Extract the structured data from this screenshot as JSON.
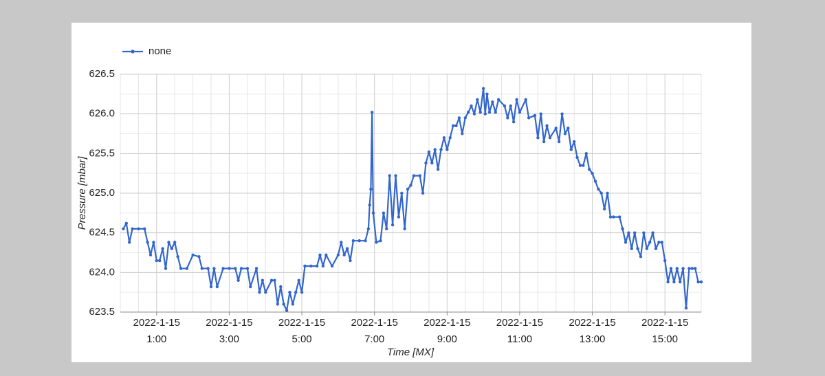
{
  "chart_data": {
    "type": "line",
    "xlabel": "Time [MX]",
    "ylabel": "Pressure [mbar]",
    "legend": "top-left",
    "grid": true,
    "minor_grid": true,
    "xlim": [
      "2022-1-15 0:00",
      "2022-1-15 16:00"
    ],
    "xticks": [
      {
        "value": "2022-1-15 1:00",
        "label": [
          "2022-1-15",
          "1:00"
        ]
      },
      {
        "value": "2022-1-15 3:00",
        "label": [
          "2022-1-15",
          "3:00"
        ]
      },
      {
        "value": "2022-1-15 5:00",
        "label": [
          "2022-1-15",
          "5:00"
        ]
      },
      {
        "value": "2022-1-15 7:00",
        "label": [
          "2022-1-15",
          "7:00"
        ]
      },
      {
        "value": "2022-1-15 9:00",
        "label": [
          "2022-1-15",
          "9:00"
        ]
      },
      {
        "value": "2022-1-15 11:00",
        "label": [
          "2022-1-15",
          "11:00"
        ]
      },
      {
        "value": "2022-1-15 13:00",
        "label": [
          "2022-1-15",
          "13:00"
        ]
      },
      {
        "value": "2022-1-15 15:00",
        "label": [
          "2022-1-15",
          "15:00"
        ]
      }
    ],
    "ylim": [
      623.5,
      626.5
    ],
    "yticks": [
      623.5,
      {
        "value": 624,
        "label": "624.0"
      },
      624.5,
      {
        "value": 625,
        "label": "625.0"
      },
      625.5,
      {
        "value": 626,
        "label": "626.0"
      },
      626.5
    ],
    "x": [
      "2022-1-15 0:05",
      "2022-1-15 0:10",
      "2022-1-15 0:15",
      "2022-1-15 0:20",
      "2022-1-15 0:30",
      "2022-1-15 0:40",
      "2022-1-15 0:45",
      "2022-1-15 0:50",
      "2022-1-15 0:55",
      "2022-1-15 1:00",
      "2022-1-15 1:05",
      "2022-1-15 1:10",
      "2022-1-15 1:15",
      "2022-1-15 1:20",
      "2022-1-15 1:25",
      "2022-1-15 1:30",
      "2022-1-15 1:35",
      "2022-1-15 1:40",
      "2022-1-15 1:50",
      "2022-1-15 2:00",
      "2022-1-15 2:10",
      "2022-1-15 2:15",
      "2022-1-15 2:25",
      "2022-1-15 2:30",
      "2022-1-15 2:35",
      "2022-1-15 2:40",
      "2022-1-15 2:50",
      "2022-1-15 3:00",
      "2022-1-15 3:10",
      "2022-1-15 3:15",
      "2022-1-15 3:20",
      "2022-1-15 3:30",
      "2022-1-15 3:35",
      "2022-1-15 3:45",
      "2022-1-15 3:50",
      "2022-1-15 3:55",
      "2022-1-15 4:00",
      "2022-1-15 4:10",
      "2022-1-15 4:15",
      "2022-1-15 4:20",
      "2022-1-15 4:25",
      "2022-1-15 4:30",
      "2022-1-15 4:35",
      "2022-1-15 4:40",
      "2022-1-15 4:45",
      "2022-1-15 4:50",
      "2022-1-15 4:55",
      "2022-1-15 5:00",
      "2022-1-15 5:05",
      "2022-1-15 5:15",
      "2022-1-15 5:25",
      "2022-1-15 5:30",
      "2022-1-15 5:35",
      "2022-1-15 5:40",
      "2022-1-15 5:50",
      "2022-1-15 6:00",
      "2022-1-15 6:05",
      "2022-1-15 6:10",
      "2022-1-15 6:15",
      "2022-1-15 6:20",
      "2022-1-15 6:25",
      "2022-1-15 6:35",
      "2022-1-15 6:45",
      "2022-1-15 6:50",
      "2022-1-15 6:52",
      "2022-1-15 6:54",
      "2022-1-15 6:56",
      "2022-1-15 6:58",
      "2022-1-15 7:03",
      "2022-1-15 7:10",
      "2022-1-15 7:15",
      "2022-1-15 7:20",
      "2022-1-15 7:25",
      "2022-1-15 7:30",
      "2022-1-15 7:35",
      "2022-1-15 7:40",
      "2022-1-15 7:45",
      "2022-1-15 7:50",
      "2022-1-15 7:55",
      "2022-1-15 8:00",
      "2022-1-15 8:05",
      "2022-1-15 8:15",
      "2022-1-15 8:20",
      "2022-1-15 8:25",
      "2022-1-15 8:30",
      "2022-1-15 8:35",
      "2022-1-15 8:40",
      "2022-1-15 8:45",
      "2022-1-15 8:50",
      "2022-1-15 8:55",
      "2022-1-15 9:00",
      "2022-1-15 9:05",
      "2022-1-15 9:10",
      "2022-1-15 9:15",
      "2022-1-15 9:20",
      "2022-1-15 9:25",
      "2022-1-15 9:30",
      "2022-1-15 9:35",
      "2022-1-15 9:40",
      "2022-1-15 9:45",
      "2022-1-15 9:50",
      "2022-1-15 9:55",
      "2022-1-15 10:00",
      "2022-1-15 10:03",
      "2022-1-15 10:06",
      "2022-1-15 10:10",
      "2022-1-15 10:15",
      "2022-1-15 10:20",
      "2022-1-15 10:25",
      "2022-1-15 10:35",
      "2022-1-15 10:40",
      "2022-1-15 10:45",
      "2022-1-15 10:50",
      "2022-1-15 10:55",
      "2022-1-15 11:00",
      "2022-1-15 11:10",
      "2022-1-15 11:15",
      "2022-1-15 11:25",
      "2022-1-15 11:30",
      "2022-1-15 11:35",
      "2022-1-15 11:40",
      "2022-1-15 11:45",
      "2022-1-15 11:50",
      "2022-1-15 12:00",
      "2022-1-15 12:05",
      "2022-1-15 12:10",
      "2022-1-15 12:15",
      "2022-1-15 12:20",
      "2022-1-15 12:25",
      "2022-1-15 12:30",
      "2022-1-15 12:35",
      "2022-1-15 12:40",
      "2022-1-15 12:45",
      "2022-1-15 12:50",
      "2022-1-15 12:55",
      "2022-1-15 13:00",
      "2022-1-15 13:05",
      "2022-1-15 13:10",
      "2022-1-15 13:15",
      "2022-1-15 13:20",
      "2022-1-15 13:25",
      "2022-1-15 13:30",
      "2022-1-15 13:35",
      "2022-1-15 13:45",
      "2022-1-15 13:50",
      "2022-1-15 13:55",
      "2022-1-15 14:00",
      "2022-1-15 14:05",
      "2022-1-15 14:10",
      "2022-1-15 14:15",
      "2022-1-15 14:20",
      "2022-1-15 14:25",
      "2022-1-15 14:30",
      "2022-1-15 14:35",
      "2022-1-15 14:40",
      "2022-1-15 14:45",
      "2022-1-15 14:50",
      "2022-1-15 14:55",
      "2022-1-15 15:00",
      "2022-1-15 15:05",
      "2022-1-15 15:10",
      "2022-1-15 15:15",
      "2022-1-15 15:20",
      "2022-1-15 15:25",
      "2022-1-15 15:30",
      "2022-1-15 15:35",
      "2022-1-15 15:40",
      "2022-1-15 15:45",
      "2022-1-15 15:50",
      "2022-1-15 15:55",
      "2022-1-15 16:00"
    ],
    "series": [
      {
        "name": "none",
        "color": "#3366cc",
        "values": [
          624.55,
          624.62,
          624.38,
          624.55,
          624.55,
          624.55,
          624.38,
          624.22,
          624.38,
          624.15,
          624.15,
          624.3,
          624.05,
          624.38,
          624.3,
          624.38,
          624.2,
          624.05,
          624.05,
          624.22,
          624.2,
          624.05,
          624.05,
          623.82,
          624.05,
          623.82,
          624.05,
          624.05,
          624.05,
          623.9,
          624.05,
          624.05,
          623.82,
          624.05,
          623.75,
          623.9,
          623.75,
          623.9,
          623.9,
          623.6,
          623.82,
          623.6,
          623.52,
          623.75,
          623.6,
          623.75,
          623.9,
          623.75,
          624.08,
          624.08,
          624.08,
          624.22,
          624.08,
          624.22,
          624.08,
          624.22,
          624.38,
          624.22,
          624.3,
          624.15,
          624.4,
          624.4,
          624.4,
          624.55,
          624.85,
          625.05,
          626.02,
          624.75,
          624.38,
          624.4,
          624.75,
          624.55,
          625.22,
          624.6,
          625.22,
          624.7,
          625.0,
          624.55,
          625.05,
          625.1,
          625.22,
          625.22,
          625.0,
          625.38,
          625.52,
          625.38,
          625.55,
          625.3,
          625.55,
          625.7,
          625.55,
          625.7,
          625.85,
          625.85,
          625.95,
          625.75,
          625.95,
          626.02,
          626.1,
          626.0,
          626.18,
          626.02,
          626.32,
          626.0,
          626.25,
          626.02,
          626.15,
          626.02,
          626.18,
          626.1,
          625.95,
          626.1,
          625.9,
          626.18,
          626.02,
          626.18,
          625.95,
          625.98,
          625.7,
          626.0,
          625.65,
          625.85,
          625.7,
          625.82,
          625.65,
          626.0,
          625.75,
          625.82,
          625.55,
          625.65,
          625.45,
          625.35,
          625.35,
          625.5,
          625.3,
          625.25,
          625.15,
          625.05,
          625.0,
          624.8,
          625.0,
          624.7,
          624.7,
          624.7,
          624.55,
          624.38,
          624.5,
          624.3,
          624.5,
          624.3,
          624.2,
          624.5,
          624.3,
          624.38,
          624.5,
          624.3,
          624.38,
          624.38,
          624.15,
          623.88,
          624.05,
          623.88,
          624.05,
          623.88,
          624.05,
          623.55,
          624.05,
          624.05,
          624.05,
          623.88,
          623.88
        ]
      }
    ]
  }
}
